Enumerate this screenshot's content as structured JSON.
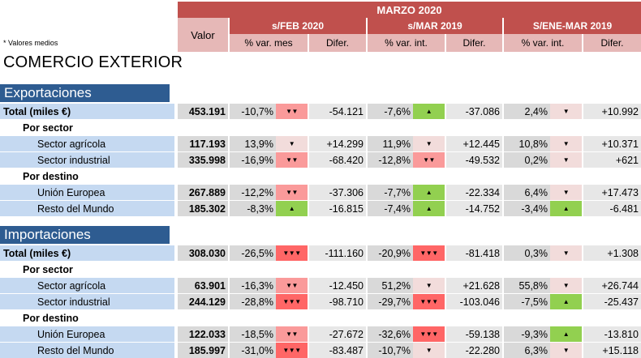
{
  "header": {
    "period": "MARZO 2020",
    "valor": "Valor",
    "groups": [
      "s/FEB 2020",
      "s/MAR 2019",
      "S/ENE-MAR 2019"
    ],
    "subheaders": [
      "% var. mes",
      "Difer.",
      "% var. int.",
      "Difer.",
      "% var. int.",
      "Difer."
    ]
  },
  "note": "* Valores medios",
  "title": "COMERCIO EXTERIOR",
  "colors": {
    "red_band": "#c0504d",
    "pink_header": "#e6b8b7",
    "blue_section": "#2e5c91",
    "label_blue": "#c5d9f1",
    "up_green": "#92d050",
    "down_light": "#f2dcdb",
    "down_medium": "#fa9a9a",
    "down_strong": "#ff6666"
  },
  "sections": [
    {
      "name": "Exportaciones",
      "rows": [
        {
          "type": "total",
          "label": "Total (miles €)",
          "valor": "453.191",
          "c": [
            {
              "pct": "-10,7%",
              "arrow": "▼▼",
              "level": "dn2",
              "dif": "-54.121"
            },
            {
              "pct": "-7,6%",
              "arrow": "▲",
              "level": "up",
              "dif": "-37.086"
            },
            {
              "pct": "2,4%",
              "arrow": "▼",
              "level": "dn1",
              "dif": "+10.992"
            }
          ]
        },
        {
          "type": "cat",
          "label": "Por sector"
        },
        {
          "type": "sub",
          "label": "Sector agrícola",
          "valor": "117.193",
          "c": [
            {
              "pct": "13,9%",
              "arrow": "▼",
              "level": "dn1",
              "dif": "+14.299"
            },
            {
              "pct": "11,9%",
              "arrow": "▼",
              "level": "dn1",
              "dif": "+12.445"
            },
            {
              "pct": "10,8%",
              "arrow": "▼",
              "level": "dn1",
              "dif": "+10.371"
            }
          ]
        },
        {
          "type": "sub",
          "label": "Sector industrial",
          "valor": "335.998",
          "c": [
            {
              "pct": "-16,9%",
              "arrow": "▼▼",
              "level": "dn2",
              "dif": "-68.420"
            },
            {
              "pct": "-12,8%",
              "arrow": "▼▼",
              "level": "dn2",
              "dif": "-49.532"
            },
            {
              "pct": "0,2%",
              "arrow": "▼",
              "level": "dn1",
              "dif": "+621"
            }
          ]
        },
        {
          "type": "cat",
          "label": "Por destino"
        },
        {
          "type": "sub",
          "label": "Unión Europea",
          "valor": "267.889",
          "c": [
            {
              "pct": "-12,2%",
              "arrow": "▼▼",
              "level": "dn2",
              "dif": "-37.306"
            },
            {
              "pct": "-7,7%",
              "arrow": "▲",
              "level": "up",
              "dif": "-22.334"
            },
            {
              "pct": "6,4%",
              "arrow": "▼",
              "level": "dn1",
              "dif": "+17.473"
            }
          ]
        },
        {
          "type": "sub",
          "label": "Resto del Mundo",
          "valor": "185.302",
          "c": [
            {
              "pct": "-8,3%",
              "arrow": "▲",
              "level": "up",
              "dif": "-16.815"
            },
            {
              "pct": "-7,4%",
              "arrow": "▲",
              "level": "up",
              "dif": "-14.752"
            },
            {
              "pct": "-3,4%",
              "arrow": "▲",
              "level": "up",
              "dif": "-6.481"
            }
          ]
        }
      ]
    },
    {
      "name": "Importaciones",
      "rows": [
        {
          "type": "total",
          "label": "Total (miles €)",
          "valor": "308.030",
          "c": [
            {
              "pct": "-26,5%",
              "arrow": "▼▼▼",
              "level": "dn3",
              "dif": "-111.160"
            },
            {
              "pct": "-20,9%",
              "arrow": "▼▼▼",
              "level": "dn3",
              "dif": "-81.418"
            },
            {
              "pct": "0,3%",
              "arrow": "▼",
              "level": "dn1",
              "dif": "+1.308"
            }
          ]
        },
        {
          "type": "cat",
          "label": "Por sector"
        },
        {
          "type": "sub",
          "label": "Sector agrícola",
          "valor": "63.901",
          "c": [
            {
              "pct": "-16,3%",
              "arrow": "▼▼",
              "level": "dn2",
              "dif": "-12.450"
            },
            {
              "pct": "51,2%",
              "arrow": "▼",
              "level": "dn1",
              "dif": "+21.628"
            },
            {
              "pct": "55,8%",
              "arrow": "▼",
              "level": "dn1",
              "dif": "+26.744"
            }
          ]
        },
        {
          "type": "sub",
          "label": "Sector industrial",
          "valor": "244.129",
          "c": [
            {
              "pct": "-28,8%",
              "arrow": "▼▼▼",
              "level": "dn3",
              "dif": "-98.710"
            },
            {
              "pct": "-29,7%",
              "arrow": "▼▼▼",
              "level": "dn3",
              "dif": "-103.046"
            },
            {
              "pct": "-7,5%",
              "arrow": "▲",
              "level": "up",
              "dif": "-25.437"
            }
          ]
        },
        {
          "type": "cat",
          "label": "Por destino"
        },
        {
          "type": "sub",
          "label": "Unión Europea",
          "valor": "122.033",
          "c": [
            {
              "pct": "-18,5%",
              "arrow": "▼▼",
              "level": "dn2",
              "dif": "-27.672"
            },
            {
              "pct": "-32,6%",
              "arrow": "▼▼▼",
              "level": "dn3",
              "dif": "-59.138"
            },
            {
              "pct": "-9,3%",
              "arrow": "▲",
              "level": "up",
              "dif": "-13.810"
            }
          ]
        },
        {
          "type": "sub",
          "label": "Resto del Mundo",
          "valor": "185.997",
          "c": [
            {
              "pct": "-31,0%",
              "arrow": "▼▼▼",
              "level": "dn3",
              "dif": "-83.487"
            },
            {
              "pct": "-10,7%",
              "arrow": "▼",
              "level": "dn1",
              "dif": "-22.280"
            },
            {
              "pct": "6,3%",
              "arrow": "▼",
              "level": "dn1",
              "dif": "+15.118"
            }
          ]
        }
      ]
    }
  ]
}
